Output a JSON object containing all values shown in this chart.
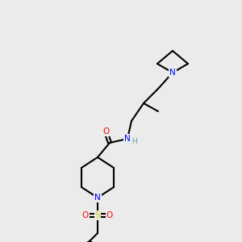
{
  "background_color": "#ebebeb",
  "bond_color": "#000000",
  "bond_width": 1.5,
  "atom_colors": {
    "N": "#0000ff",
    "O": "#ff0000",
    "S": "#cccc00",
    "H": "#5f9ea0",
    "C": "#000000"
  },
  "font_size": 7.5,
  "font_size_small": 6.5
}
